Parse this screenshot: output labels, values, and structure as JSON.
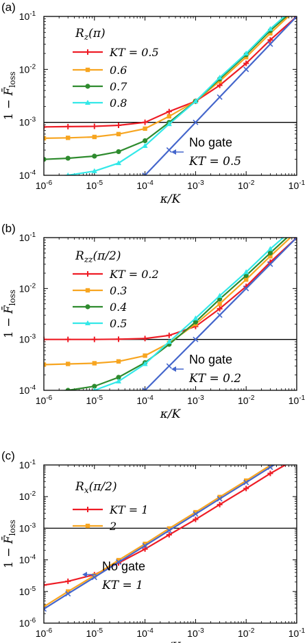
{
  "chart_data": [
    {
      "type": "line",
      "panel_label": "(a)",
      "xlabel": "κ/K",
      "ylabel": "1 − F̄loss",
      "x_scale": "log",
      "y_scale": "log",
      "xlim": [
        1e-06,
        0.1
      ],
      "ylim": [
        0.0001,
        0.1
      ],
      "x_ticks": [
        "10-6",
        "10-5",
        "10-4",
        "10-3",
        "10-2",
        "10-1"
      ],
      "y_ticks": [
        "10-4",
        "10-3",
        "10-2",
        "10-1"
      ],
      "threshold": 0.001,
      "legend_title": "Rz(π)",
      "legend_placement": "top-left",
      "series": [
        {
          "name": "KT = 0.5",
          "color": "#ee1c25",
          "marker": "plus",
          "x": [
            1e-06,
            3e-06,
            1e-05,
            3e-05,
            0.0001,
            0.0003,
            0.001,
            0.003,
            0.01,
            0.03,
            0.1
          ],
          "y": [
            0.00082,
            0.00083,
            0.00084,
            0.00088,
            0.001,
            0.0016,
            0.0025,
            0.005,
            0.013,
            0.036,
            0.1
          ]
        },
        {
          "name": "0.6",
          "color": "#f7a520",
          "marker": "square",
          "x": [
            1e-06,
            3e-06,
            1e-05,
            3e-05,
            0.0001,
            0.0003,
            0.001,
            0.003,
            0.01,
            0.03,
            0.1
          ],
          "y": [
            0.0005,
            0.00051,
            0.00053,
            0.0006,
            0.00076,
            0.0013,
            0.0025,
            0.006,
            0.017,
            0.048,
            0.14
          ]
        },
        {
          "name": "0.7",
          "color": "#2e8b2e",
          "marker": "circle",
          "x": [
            1e-06,
            3e-06,
            1e-05,
            3e-05,
            0.0001,
            0.0003,
            0.001,
            0.003,
            0.01,
            0.03,
            0.1
          ],
          "y": [
            0.0002,
            0.00021,
            0.00023,
            0.00028,
            0.00045,
            0.001,
            0.0025,
            0.0066,
            0.019,
            0.054,
            0.15
          ]
        },
        {
          "name": "0.8",
          "color": "#33e8e8",
          "marker": "triangle",
          "x": [
            1e-06,
            3e-06,
            1e-05,
            3e-05,
            0.0001,
            0.0003,
            0.001,
            0.003,
            0.01,
            0.03,
            0.1
          ],
          "y": [
            9e-05,
            0.0001,
            0.00012,
            0.00017,
            0.00036,
            0.00093,
            0.0025,
            0.007,
            0.02,
            0.058,
            0.16
          ]
        },
        {
          "name": "No gate",
          "color": "#4466cc",
          "marker": "cross",
          "x": [
            0.0001,
            0.0003,
            0.001,
            0.003,
            0.01,
            0.03,
            0.1
          ],
          "y": [
            0.0001,
            0.0003,
            0.001,
            0.003,
            0.01,
            0.03,
            0.1
          ]
        }
      ],
      "annotation": {
        "text": "No gate",
        "math": "KT = 0.5"
      }
    },
    {
      "type": "line",
      "panel_label": "(b)",
      "xlabel": "κ/K",
      "ylabel": "1 − F̄loss",
      "x_scale": "log",
      "y_scale": "log",
      "xlim": [
        1e-06,
        0.1
      ],
      "ylim": [
        0.0001,
        0.1
      ],
      "x_ticks": [
        "10-6",
        "10-5",
        "10-4",
        "10-3",
        "10-2",
        "10-1"
      ],
      "y_ticks": [
        "10-4",
        "10-3",
        "10-2",
        "10-1"
      ],
      "threshold": 0.001,
      "legend_title": "Rzz(π/2)",
      "legend_placement": "top-left",
      "series": [
        {
          "name": "KT = 0.2",
          "color": "#ee1c25",
          "marker": "plus",
          "x": [
            1e-06,
            3e-06,
            1e-05,
            3e-05,
            0.0001,
            0.0003,
            0.001,
            0.003,
            0.01,
            0.03,
            0.1
          ],
          "y": [
            0.001,
            0.001,
            0.001,
            0.00101,
            0.00104,
            0.0012,
            0.0018,
            0.004,
            0.011,
            0.033,
            0.1
          ]
        },
        {
          "name": "0.3",
          "color": "#f7a520",
          "marker": "square",
          "x": [
            1e-06,
            3e-06,
            1e-05,
            3e-05,
            0.0001,
            0.0003,
            0.001,
            0.003,
            0.01,
            0.03,
            0.1
          ],
          "y": [
            0.00032,
            0.00033,
            0.00034,
            0.00037,
            0.00048,
            0.00085,
            0.002,
            0.005,
            0.015,
            0.043,
            0.13
          ]
        },
        {
          "name": "0.4",
          "color": "#2e8b2e",
          "marker": "circle",
          "x": [
            1e-06,
            3e-06,
            1e-05,
            3e-05,
            0.0001,
            0.0003,
            0.001,
            0.003,
            0.01,
            0.03,
            0.1
          ],
          "y": [
            9e-05,
            0.0001,
            0.00012,
            0.00018,
            0.00035,
            0.0008,
            0.0022,
            0.0062,
            0.018,
            0.05,
            0.15
          ]
        },
        {
          "name": "0.5",
          "color": "#33e8e8",
          "marker": "triangle",
          "x": [
            3e-06,
            1e-05,
            3e-05,
            0.0001,
            0.0003,
            0.001,
            0.003,
            0.01,
            0.03,
            0.1
          ],
          "y": [
            7.5e-05,
            0.0001,
            0.00015,
            0.00033,
            0.0009,
            0.0026,
            0.0072,
            0.021,
            0.06,
            0.17
          ]
        },
        {
          "name": "No gate",
          "color": "#4466cc",
          "marker": "cross",
          "x": [
            0.0001,
            0.0003,
            0.001,
            0.003,
            0.01,
            0.03,
            0.1
          ],
          "y": [
            0.0001,
            0.0003,
            0.001,
            0.003,
            0.01,
            0.03,
            0.1
          ]
        }
      ],
      "annotation": {
        "text": "No gate",
        "math": "KT = 0.2"
      }
    },
    {
      "type": "line",
      "panel_label": "(c)",
      "xlabel": "κ/K",
      "ylabel": "1 − F̄loss",
      "x_scale": "log",
      "y_scale": "log",
      "xlim": [
        1e-06,
        0.1
      ],
      "ylim": [
        1e-06,
        0.1
      ],
      "x_ticks": [
        "10-6",
        "10-5",
        "10-4",
        "10-3",
        "10-2",
        "10-1"
      ],
      "y_ticks": [
        "10-6",
        "10-5",
        "10-4",
        "10-3",
        "10-2",
        "10-1"
      ],
      "threshold": 0.001,
      "legend_title": "Rx(π/2)",
      "legend_placement": "top-left",
      "series": [
        {
          "name": "KT = 1",
          "color": "#ee1c25",
          "marker": "plus",
          "x": [
            1e-06,
            3e-06,
            1e-05,
            3e-05,
            0.0001,
            0.0003,
            0.001,
            0.003,
            0.01,
            0.03,
            0.1
          ],
          "y": [
            1.6e-05,
            2.1e-05,
            3.4e-05,
            8e-05,
            0.00022,
            0.00062,
            0.0019,
            0.0056,
            0.018,
            0.054,
            0.16
          ]
        },
        {
          "name": "2",
          "color": "#f7a520",
          "marker": "square",
          "x": [
            1e-06,
            3e-06,
            1e-05,
            3e-05,
            0.0001,
            0.0003,
            0.001,
            0.003,
            0.01,
            0.03,
            0.1
          ],
          "y": [
            3.3e-06,
            1e-05,
            3.2e-05,
            9.8e-05,
            0.00032,
            0.00098,
            0.0032,
            0.0097,
            0.032,
            0.097,
            0.3
          ]
        },
        {
          "name": "No gate",
          "color": "#4466cc",
          "marker": "cross",
          "x": [
            1e-06,
            3e-06,
            1e-05,
            3e-05,
            0.0001,
            0.0003,
            0.001,
            0.003,
            0.01,
            0.03,
            0.1
          ],
          "y": [
            2.8e-06,
            8.5e-06,
            2.8e-05,
            8.5e-05,
            0.00028,
            0.00085,
            0.0028,
            0.0085,
            0.028,
            0.085,
            0.28
          ]
        }
      ],
      "annotation": {
        "text": "No gate",
        "math": "KT = 1"
      }
    }
  ]
}
